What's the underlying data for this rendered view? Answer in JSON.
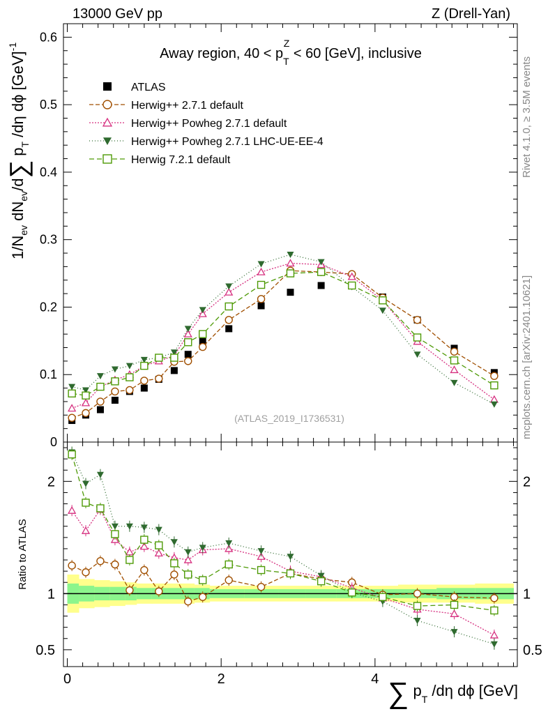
{
  "header": {
    "left_label": "13000 GeV pp",
    "right_label": "Z (Drell-Yan)"
  },
  "side_labels": {
    "rivet": "Rivet 4.1.0, ≥ 3.5M events",
    "mcplots": "mcplots.cern.ch [arXiv:2401.10621]"
  },
  "chart_data": {
    "type": "scatter",
    "title_prefix": "Away region, 40 < p",
    "title_sub": "T",
    "title_sup": "Z",
    "title_suffix": " < 60 [GeV], inclusive",
    "analysis_id": "(ATLAS_2019_I1736531)",
    "ylabel": {
      "a": "1/N",
      "a_sub": "ev",
      "b": " dN",
      "b_sub": "ev",
      "c": "/d",
      "sum": "∑",
      "d": " p",
      "d_sub": "T",
      "e": " /dη dϕ  [GeV]",
      "e_sup": "-1"
    },
    "xlabel": {
      "sum": "∑",
      "a": " p",
      "a_sub": "T",
      "b": " /dη dϕ [GeV]"
    },
    "ratio_ylabel": "Ratio to ATLAS",
    "xlim": [
      -0.05,
      5.85
    ],
    "ylim": [
      0,
      0.62
    ],
    "ratio_ylim": [
      0.35,
      2.35
    ],
    "x_ticks": [
      "0",
      "2",
      "4"
    ],
    "y_ticks": [
      "0",
      "0.1",
      "0.2",
      "0.3",
      "0.4",
      "0.5",
      "0.6"
    ],
    "ratio_ticks": [
      "0.5",
      "1",
      "2"
    ],
    "x": [
      0.06,
      0.24,
      0.43,
      0.62,
      0.81,
      1.0,
      1.19,
      1.39,
      1.57,
      1.76,
      2.1,
      2.52,
      2.9,
      3.3,
      3.7,
      4.1,
      4.55,
      5.03,
      5.55
    ],
    "ratio_band": {
      "x_edges": [
        0.0,
        0.15,
        0.35,
        0.55,
        0.75,
        0.9,
        1.1,
        1.3,
        1.45,
        1.65,
        1.85,
        2.3,
        2.75,
        3.1,
        3.5,
        3.9,
        4.3,
        4.8,
        5.3,
        5.8
      ],
      "yellow_half": [
        0.17,
        0.13,
        0.12,
        0.11,
        0.1,
        0.09,
        0.09,
        0.09,
        0.09,
        0.08,
        0.07,
        0.07,
        0.07,
        0.07,
        0.07,
        0.07,
        0.08,
        0.08,
        0.09
      ],
      "green_half": [
        0.09,
        0.07,
        0.06,
        0.06,
        0.06,
        0.05,
        0.05,
        0.05,
        0.05,
        0.05,
        0.04,
        0.04,
        0.04,
        0.04,
        0.04,
        0.04,
        0.04,
        0.05,
        0.05
      ]
    },
    "series": [
      {
        "name": "ATLAS",
        "color": "#000000",
        "marker": "square-filled",
        "dash": "none",
        "values": [
          0.032,
          0.04,
          0.048,
          0.062,
          0.075,
          0.08,
          0.093,
          0.106,
          0.13,
          0.149,
          0.168,
          0.202,
          0.222,
          0.232,
          0.232,
          0.215,
          0.181,
          0.139,
          0.103
        ],
        "ratio": [
          1.0,
          1.0,
          1.0,
          1.0,
          1.0,
          1.0,
          1.0,
          1.0,
          1.0,
          1.0,
          1.0,
          1.0,
          1.0,
          1.0,
          1.0,
          1.0,
          1.0,
          1.0,
          1.0
        ]
      },
      {
        "name": "Herwig++ 2.7.1 default",
        "color": "#a04f00",
        "marker": "circle-open",
        "dash": "6,3",
        "values": [
          0.036,
          0.043,
          0.06,
          0.075,
          0.077,
          0.091,
          0.094,
          0.119,
          0.12,
          0.141,
          0.181,
          0.212,
          0.254,
          0.252,
          0.249,
          0.214,
          0.181,
          0.134,
          0.098
        ],
        "ratio": [
          1.25,
          1.19,
          1.29,
          1.26,
          1.03,
          1.21,
          1.02,
          1.17,
          0.93,
          0.97,
          1.12,
          1.06,
          1.18,
          1.13,
          1.1,
          0.99,
          1.0,
          0.97,
          0.96
        ]
      },
      {
        "name": "Herwig++ Powheg 2.7.1 default",
        "color": "#d62f7f",
        "marker": "triangle-open",
        "dash": "2,2",
        "values": [
          0.05,
          0.058,
          0.082,
          0.092,
          0.1,
          0.113,
          0.12,
          0.128,
          0.16,
          0.19,
          0.222,
          0.252,
          0.265,
          0.263,
          0.245,
          0.21,
          0.149,
          0.107,
          0.063
        ],
        "ratio": [
          1.74,
          1.56,
          1.75,
          1.48,
          1.37,
          1.42,
          1.36,
          1.32,
          1.3,
          1.39,
          1.4,
          1.33,
          1.2,
          1.15,
          1.05,
          0.96,
          0.86,
          0.82,
          0.63
        ]
      },
      {
        "name": "Herwig++ Powheg 2.7.1 LHC-UE-EE-4",
        "color": "#2f6a2f",
        "marker": "triangle-down-filled",
        "dash": "1,3",
        "values": [
          0.082,
          0.077,
          0.098,
          0.108,
          0.113,
          0.122,
          0.125,
          0.133,
          0.168,
          0.196,
          0.231,
          0.264,
          0.278,
          0.267,
          0.23,
          0.195,
          0.13,
          0.088,
          0.056
        ],
        "ratio": [
          2.26,
          1.98,
          2.06,
          1.6,
          1.6,
          1.59,
          1.57,
          1.46,
          1.37,
          1.41,
          1.45,
          1.38,
          1.33,
          1.16,
          1.01,
          0.93,
          0.76,
          0.66,
          0.55
        ]
      },
      {
        "name": "Herwig 7.2.1 default",
        "color": "#4e9a06",
        "marker": "square-open",
        "dash": "7,4",
        "values": [
          0.072,
          0.069,
          0.082,
          0.09,
          0.096,
          0.113,
          0.125,
          0.125,
          0.148,
          0.16,
          0.201,
          0.233,
          0.25,
          0.252,
          0.232,
          0.21,
          0.155,
          0.121,
          0.084
        ],
        "ratio": [
          2.24,
          1.81,
          1.76,
          1.53,
          1.3,
          1.48,
          1.43,
          1.27,
          1.17,
          1.12,
          1.26,
          1.21,
          1.18,
          1.11,
          1.01,
          0.97,
          0.89,
          0.9,
          0.85
        ]
      }
    ]
  }
}
